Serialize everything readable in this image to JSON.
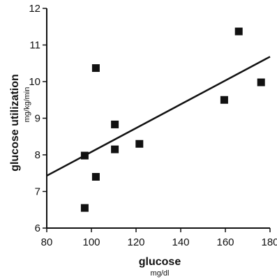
{
  "chart_data": {
    "type": "scatter",
    "title": "",
    "xlabel": "glucose",
    "xunit": "mg/dl",
    "ylabel": "glucose utilization",
    "yunit": "mg/kg/min",
    "xlim": [
      80,
      180
    ],
    "ylim": [
      6,
      12
    ],
    "xticks": [
      "80",
      "100",
      "120",
      "140",
      "160",
      "180"
    ],
    "yticks": [
      "6",
      "7",
      "8",
      "9",
      "10",
      "11",
      "12"
    ],
    "grid": false,
    "marker": "square",
    "points": [
      {
        "x": 97,
        "y": 6.55
      },
      {
        "x": 97,
        "y": 7.98
      },
      {
        "x": 102,
        "y": 7.4
      },
      {
        "x": 102,
        "y": 10.37
      },
      {
        "x": 110.5,
        "y": 8.15
      },
      {
        "x": 110.5,
        "y": 8.83
      },
      {
        "x": 121.5,
        "y": 8.3
      },
      {
        "x": 159.5,
        "y": 9.5
      },
      {
        "x": 166,
        "y": 11.37
      },
      {
        "x": 176,
        "y": 9.98
      }
    ],
    "regression_line": {
      "x": [
        80,
        180
      ],
      "y": [
        7.43,
        10.68
      ]
    },
    "colors": {
      "marks": "#111111",
      "axis": "#111111"
    }
  }
}
